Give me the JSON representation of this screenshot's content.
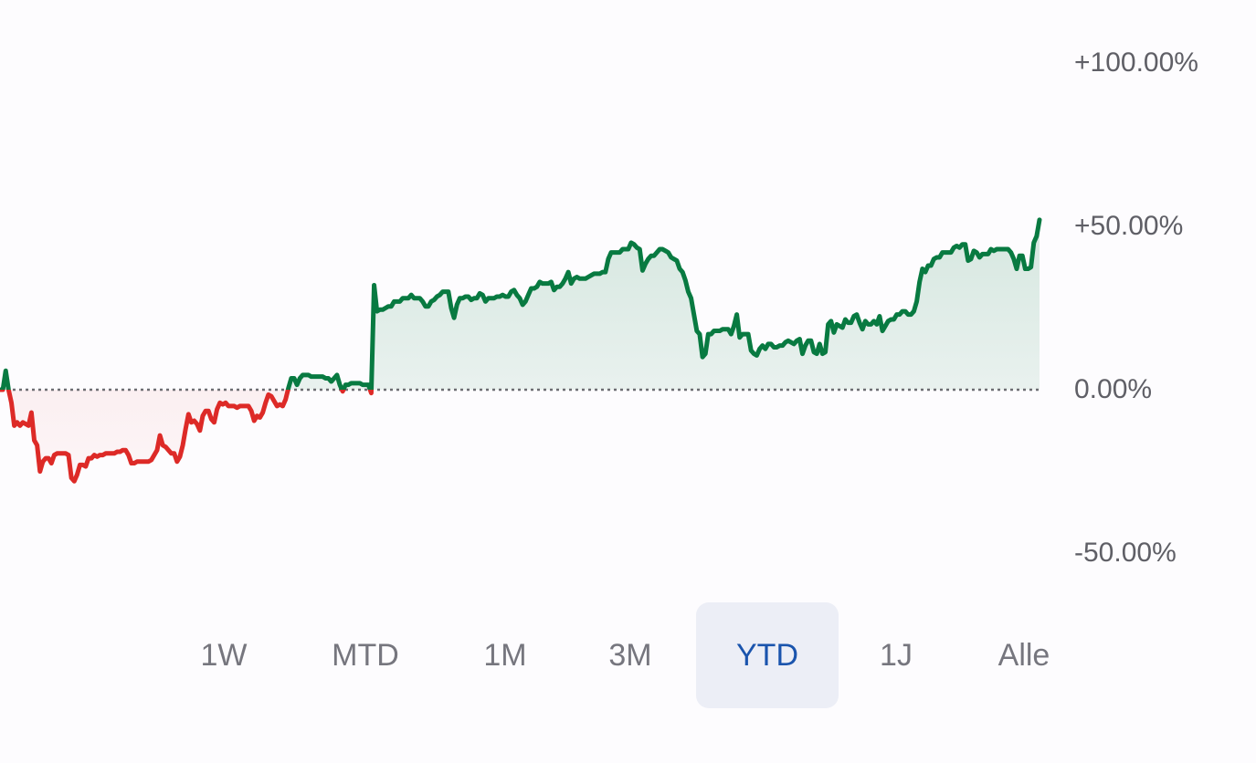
{
  "chart_data": {
    "type": "area",
    "y_tick_labels": [
      "+100.00%",
      "+50.00%",
      "0.00%",
      "-50.00%"
    ],
    "y_ticks": [
      100,
      50,
      0,
      -50
    ],
    "ylim": [
      -50,
      100
    ],
    "baseline": 0,
    "colors": {
      "positive": "#087a41",
      "negative": "#dd2a27",
      "baseline": "#6d6d72"
    },
    "series": [
      {
        "values": [
          0,
          0,
          5.8,
          0,
          -4,
          -11,
          -10,
          -11,
          -10,
          -10.5,
          -11,
          -7,
          -15.5,
          -17,
          -25,
          -22,
          -21,
          -21,
          -22.5,
          -20,
          -19.5,
          -19.5,
          -19.5,
          -19.5,
          -20,
          -27,
          -28,
          -26,
          -23,
          -23,
          -23.5,
          -21,
          -21,
          -20,
          -20.5,
          -20,
          -20,
          -19.5,
          -19.5,
          -19.5,
          -19.5,
          -19,
          -19,
          -18.5,
          -18.5,
          -20,
          -22.5,
          -22.5,
          -22,
          -22,
          -22,
          -22,
          -22,
          -21.5,
          -20,
          -18.5,
          -14,
          -17,
          -17.5,
          -18.5,
          -19.5,
          -19.5,
          -22,
          -20.5,
          -17,
          -12,
          -7.5,
          -10,
          -9.5,
          -10.5,
          -12.5,
          -8,
          -6.5,
          -6.5,
          -9,
          -10,
          -6,
          -4,
          -4.5,
          -4,
          -5,
          -5,
          -5,
          -5.5,
          -5,
          -5,
          -5,
          -5,
          -6.5,
          -9.5,
          -8,
          -8.5,
          -7,
          -4,
          -1.5,
          -2,
          -3.5,
          -5,
          -4.5,
          -5,
          -3,
          0.5,
          3.5,
          3.5,
          1.5,
          3.5,
          4.5,
          4.5,
          4.5,
          4,
          4,
          4,
          4,
          4,
          3.5,
          3.5,
          2.5,
          3.5,
          4.5,
          1.5,
          -0.5,
          1.5,
          1.5,
          2,
          2,
          2,
          2,
          1.5,
          1.5,
          1.5,
          -1,
          32,
          24,
          24.5,
          24.5,
          25,
          25.5,
          25.5,
          27,
          27,
          27,
          28,
          28,
          28,
          29,
          28,
          28,
          28,
          27,
          25.5,
          25.5,
          27,
          27.5,
          28.5,
          29,
          30,
          30,
          30,
          25,
          22,
          26,
          28,
          28,
          28.5,
          28.5,
          27.5,
          28,
          28,
          29.5,
          29,
          27,
          28,
          28,
          28,
          28.5,
          28.5,
          29,
          28.5,
          28.5,
          30,
          30.5,
          29,
          28,
          26,
          27,
          29,
          31,
          31,
          31.5,
          33,
          32.5,
          32.5,
          32.5,
          33,
          30.5,
          31.5,
          31.5,
          32.5,
          34,
          36,
          32.5,
          34,
          34.5,
          34,
          34,
          34,
          34.5,
          35,
          35.5,
          35.5,
          35.5,
          36,
          36,
          40,
          42,
          42,
          42,
          42,
          43,
          43,
          43,
          45,
          44.5,
          43.5,
          43,
          36.5,
          38.5,
          40,
          41,
          41,
          42,
          43,
          43,
          42.5,
          42,
          40.5,
          40,
          39.5,
          37,
          36,
          33.5,
          30,
          28,
          23,
          18,
          17,
          10,
          11,
          17,
          17,
          18,
          18,
          18,
          18.5,
          18.5,
          18.5,
          17,
          19.5,
          23,
          16,
          17,
          17,
          17,
          12,
          11,
          10.5,
          12.5,
          13.5,
          12.5,
          14,
          14,
          13,
          13,
          13.5,
          13.5,
          14.5,
          15,
          14.5,
          14,
          15,
          15.5,
          11,
          13.5,
          15,
          15,
          11.5,
          11,
          14,
          11,
          11.5,
          20,
          21,
          17.5,
          20,
          19.5,
          19,
          21.5,
          20.5,
          20.5,
          22.5,
          23,
          20.5,
          18.5,
          21,
          20,
          20,
          21,
          20,
          22.5,
          18,
          19.5,
          21,
          21.5,
          21.5,
          23,
          23,
          24,
          24,
          23,
          23,
          24,
          27,
          33,
          37,
          36,
          38,
          38,
          40,
          40.5,
          40.5,
          42,
          42,
          42,
          42,
          43.5,
          44,
          43.5,
          44.5,
          44.5,
          39.5,
          40,
          42.5,
          42,
          40.5,
          41.5,
          41.5,
          41.5,
          43,
          42.5,
          43,
          43,
          43,
          43,
          43,
          42,
          40,
          37,
          41,
          41,
          37,
          37,
          37.5,
          45,
          47,
          52
        ]
      }
    ]
  },
  "periods": [
    {
      "label": "1W",
      "active": false
    },
    {
      "label": "MTD",
      "active": false
    },
    {
      "label": "1M",
      "active": false
    },
    {
      "label": "3M",
      "active": false
    },
    {
      "label": "YTD",
      "active": true
    },
    {
      "label": "1J",
      "active": false
    },
    {
      "label": "Alle",
      "active": false
    }
  ]
}
